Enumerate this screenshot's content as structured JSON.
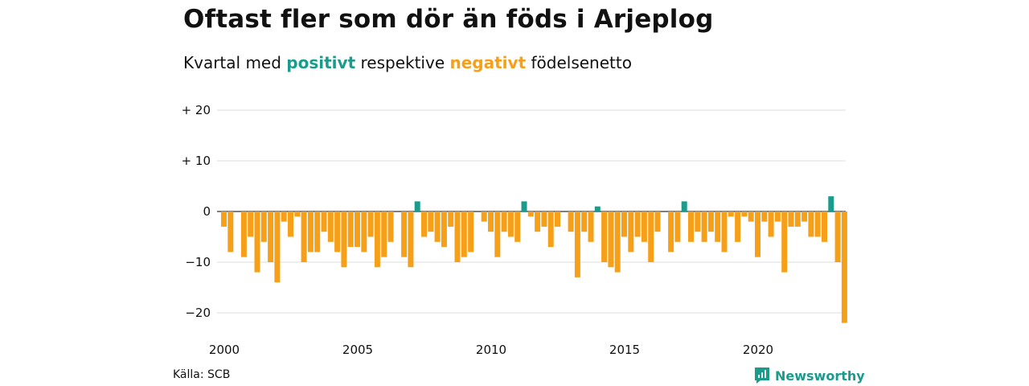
{
  "title": "Oftast fler som dör än föds i Arjeplog",
  "subtitle": {
    "prefix": "Kvartal med",
    "positive": "positivt",
    "middle": "respektive",
    "negative": "negativt",
    "suffix": "födelsenetto"
  },
  "source": "Källa: SCB",
  "brand": {
    "name": "Newsworthy",
    "icon": "newsworthy-logo-icon"
  },
  "colors": {
    "positive": "#1a9b8c",
    "negative": "#f6a01a",
    "brand": "#1a9b8c",
    "grid": "#dddddd"
  },
  "chart_data": {
    "type": "bar",
    "x_start": "2000 Q1",
    "x_ticks": [
      "2000",
      "2005",
      "2010",
      "2015",
      "2020"
    ],
    "y_ticks": [
      20,
      10,
      0,
      -10,
      -20
    ],
    "y_tick_labels": [
      "+ 20",
      "+ 10",
      "0",
      "−10",
      "−20"
    ],
    "ylim": [
      -22,
      21
    ],
    "grid": true,
    "values": [
      -3,
      -8,
      0,
      -9,
      -5,
      -12,
      -6,
      -10,
      -14,
      -2,
      -5,
      -1,
      -10,
      -8,
      -8,
      -4,
      -6,
      -8,
      -11,
      -7,
      -7,
      -8,
      -5,
      -11,
      -9,
      -6,
      0,
      -9,
      -11,
      2,
      -5,
      -4,
      -6,
      -7,
      -3,
      -10,
      -9,
      -8,
      0,
      -2,
      -4,
      -9,
      -4,
      -5,
      -6,
      2,
      -1,
      -4,
      -3,
      -7,
      -3,
      0,
      -4,
      -13,
      -4,
      -6,
      1,
      -10,
      -11,
      -12,
      -5,
      -8,
      -5,
      -6,
      -10,
      -4,
      0,
      -8,
      -6,
      2,
      -6,
      -4,
      -6,
      -4,
      -6,
      -8,
      -1,
      -6,
      -1,
      -2,
      -9,
      -2,
      -5,
      -2,
      -12,
      -3,
      -3,
      -2,
      -5,
      -5,
      -6,
      3,
      -10,
      -22
    ]
  }
}
